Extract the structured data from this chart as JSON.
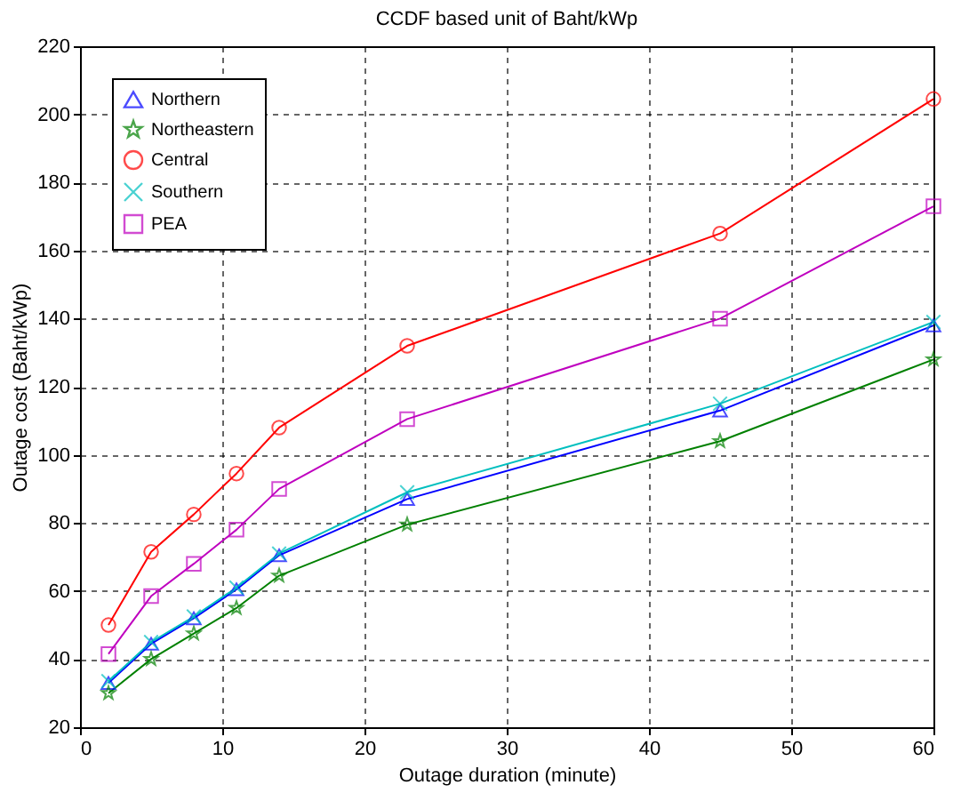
{
  "chart_data": {
    "type": "line",
    "title": "CCDF based unit of Baht/kWp",
    "xlabel": "Outage duration (minute)",
    "ylabel": "Outage cost (Baht/kWp)",
    "x": [
      2,
      5,
      8,
      11,
      14,
      23,
      45,
      60
    ],
    "series": [
      {
        "name": "Northern",
        "color": "#0000ff",
        "marker": "triangle",
        "values": [
          33,
          44.5,
          52,
          60.5,
          70.5,
          87,
          113,
          138
        ]
      },
      {
        "name": "Northeastern",
        "color": "#008000",
        "marker": "star",
        "values": [
          30,
          40,
          47.5,
          55,
          64.5,
          79.5,
          104,
          128
        ]
      },
      {
        "name": "Central",
        "color": "#ff0000",
        "marker": "circle",
        "values": [
          50,
          71.5,
          82.5,
          94.5,
          108,
          132,
          165,
          204.5
        ]
      },
      {
        "name": "Southern",
        "color": "#00bfbf",
        "marker": "cross",
        "values": [
          33.5,
          45,
          52.5,
          61,
          71,
          89,
          115,
          139
        ]
      },
      {
        "name": "PEA",
        "color": "#bf00bf",
        "marker": "square",
        "values": [
          41.5,
          58.5,
          68,
          78,
          90,
          110.5,
          140,
          173
        ]
      }
    ],
    "xlim": [
      0,
      60
    ],
    "xticks": [
      0,
      10,
      20,
      30,
      40,
      50,
      60
    ],
    "ylim": [
      20,
      220
    ],
    "yticks": [
      20,
      40,
      60,
      80,
      100,
      120,
      140,
      160,
      180,
      200,
      220
    ],
    "grid": true,
    "legend": "top left",
    "line_style": "solid"
  }
}
